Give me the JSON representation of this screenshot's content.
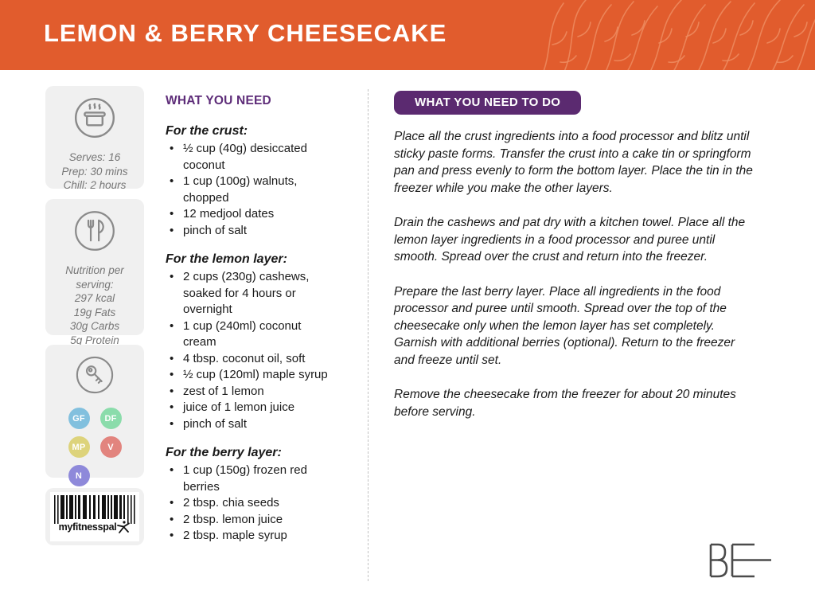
{
  "header": {
    "title": "LEMON & BERRY CHEESECAKE"
  },
  "colors": {
    "header_bg": "#E15C2D",
    "heading_purple": "#5E2D79",
    "todo_badge_bg": "#5B2A70",
    "sidebar_box_bg": "#F0F0F0"
  },
  "sidebar": {
    "serving_info": [
      "Serves: 16",
      "Prep: 30 mins",
      "Chill: 2 hours"
    ],
    "nutrition": [
      "Nutrition per serving:",
      "297 kcal",
      "19g Fats",
      "30g Carbs",
      "5g Protein"
    ],
    "dietary_badges": [
      {
        "label": "GF",
        "color": "#82C0DE"
      },
      {
        "label": "DF",
        "color": "#8BDCAB"
      },
      {
        "label": "MP",
        "color": "#DDD37B"
      },
      {
        "label": "V",
        "color": "#E2847E"
      },
      {
        "label": "N",
        "color": "#8E89DA"
      }
    ],
    "barcode_label": "myfitnesspal"
  },
  "ingredients": {
    "heading": "WHAT YOU NEED",
    "sections": [
      {
        "title": "For the crust:",
        "items": [
          "½ cup (40g) desiccated coconut",
          "1 cup (100g) walnuts, chopped",
          "12 medjool dates",
          "pinch of salt"
        ]
      },
      {
        "title": "For the lemon layer:",
        "items": [
          "2 cups (230g) cashews, soaked for 4 hours or overnight",
          "1 cup (240ml) coconut cream",
          "4 tbsp. coconut oil, soft",
          "½ cup (120ml) maple syrup",
          "zest of 1 lemon",
          "juice of 1 lemon juice",
          "pinch of salt"
        ]
      },
      {
        "title": "For the berry layer:",
        "items": [
          "1 cup (150g) frozen red berries",
          "2 tbsp. chia seeds",
          "2 tbsp. lemon juice",
          "2 tbsp. maple syrup"
        ]
      }
    ]
  },
  "instructions": {
    "heading": "WHAT YOU NEED TO DO",
    "paragraphs": [
      "Place all the crust ingredients into a food processor and blitz until sticky paste forms. Transfer the crust into a cake tin or springform pan and press evenly to form the bottom layer. Place the tin in the freezer while you make the other layers.",
      "Drain the cashews and pat dry with a kitchen towel. Place all the lemon layer ingredients in a food processor and puree until smooth. Spread over the crust and return into the freezer.",
      "Prepare the last berry layer. Place all ingredients in the food processor and puree until smooth. Spread over the top of the cheesecake only when the lemon layer has set completely. Garnish with additional berries (optional). Return to the freezer and freeze until set.",
      "Remove the cheesecake from the freezer for about 20 minutes before serving."
    ]
  },
  "footer": {
    "logo_text": "BE"
  }
}
